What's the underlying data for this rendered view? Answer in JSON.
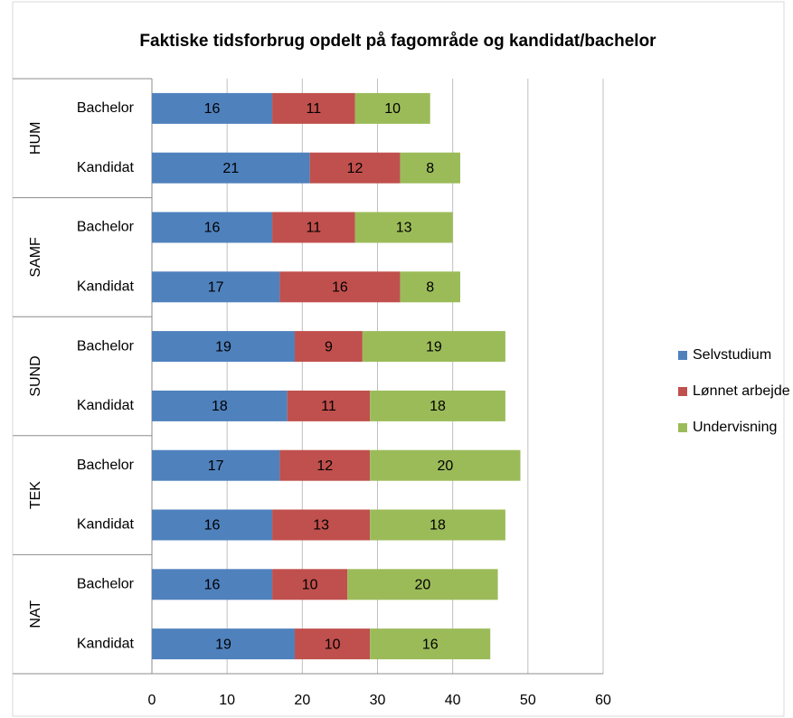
{
  "chart_data": {
    "type": "stacked_barh",
    "title": "Faktiske tidsforbrug opdelt på fagområde og kandidat/bachelor",
    "groups": [
      "HUM",
      "SAMF",
      "SUND",
      "TEK",
      "NAT"
    ],
    "categories": [
      "Bachelor",
      "Kandidat",
      "Bachelor",
      "Kandidat",
      "Bachelor",
      "Kandidat",
      "Bachelor",
      "Kandidat",
      "Bachelor",
      "Kandidat"
    ],
    "series": [
      {
        "name": "Selvstudium",
        "color": "#4f81bd",
        "values": [
          16,
          21,
          16,
          17,
          19,
          18,
          17,
          16,
          16,
          19
        ]
      },
      {
        "name": "Lønnet arbejde",
        "color": "#c0504d",
        "values": [
          11,
          12,
          11,
          16,
          9,
          11,
          12,
          13,
          10,
          10
        ]
      },
      {
        "name": "Undervisning",
        "color": "#9bbb59",
        "values": [
          10,
          8,
          13,
          8,
          19,
          18,
          20,
          18,
          20,
          16
        ]
      }
    ],
    "xlim": [
      0,
      60
    ],
    "xticks": [
      0,
      10,
      20,
      30,
      40,
      50,
      60
    ],
    "grid": true,
    "legend": "right"
  }
}
